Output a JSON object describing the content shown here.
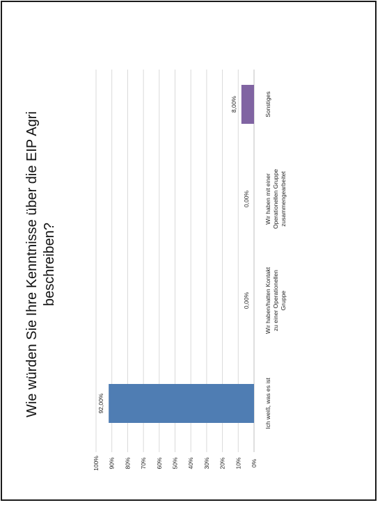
{
  "chart_data": {
    "type": "bar",
    "title_lines": [
      "Wie würden Sie Ihre Kenntnisse über die EIP Agri",
      "beschreiben?"
    ],
    "categories": [
      [
        "Ich weiß, was es ist"
      ],
      [
        "Wir haben/hatten Kontakt",
        "zu einer Operationellen",
        "Gruppe"
      ],
      [
        "Wir haben mit einer",
        "Operationellen Gruppe",
        "zusammengearbeitet"
      ],
      [
        "Sonstiges"
      ]
    ],
    "values": [
      92,
      0,
      0,
      8
    ],
    "value_labels": [
      "92,00%",
      "0,00%",
      "0,00%",
      "8,00%"
    ],
    "bar_colors": [
      "#4f7db3",
      "#4f7db3",
      "#4f7db3",
      "#8064a2"
    ],
    "ylim": [
      0,
      100
    ],
    "yticks": [
      "0%",
      "10%",
      "20%",
      "30%",
      "40%",
      "50%",
      "60%",
      "70%",
      "80%",
      "90%",
      "100%"
    ],
    "grid": true,
    "orientation": "rotated-90-ccw"
  }
}
